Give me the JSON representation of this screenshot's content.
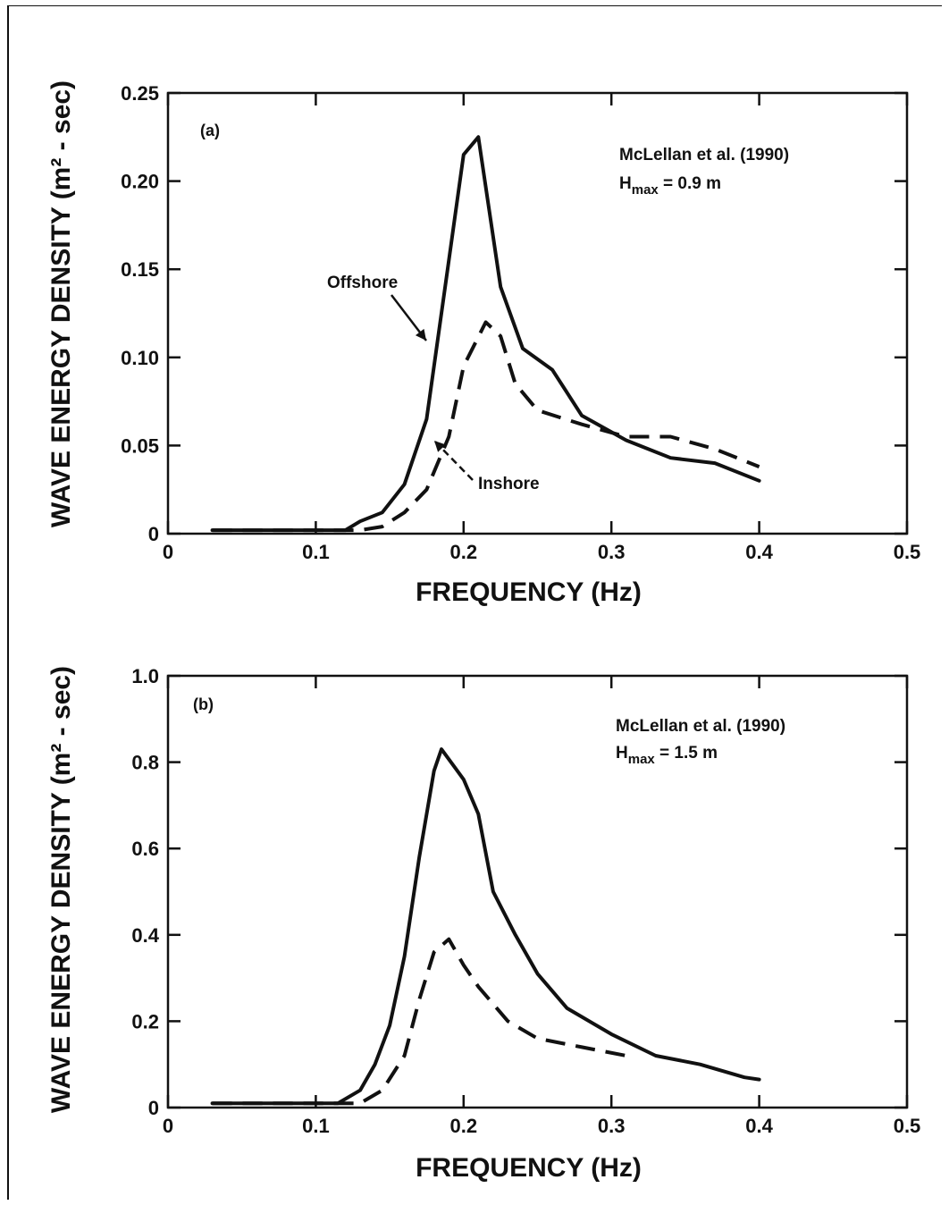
{
  "chart_data": [
    {
      "type": "line",
      "panel_label": "(a)",
      "xlabel": "FREQUENCY (Hz)",
      "ylabel": "WAVE ENERGY DENSITY (m² - sec)",
      "xlim": [
        0,
        0.5
      ],
      "ylim": [
        0,
        0.25
      ],
      "x_ticks": [
        0,
        0.1,
        0.2,
        0.3,
        0.4,
        0.5
      ],
      "x_tick_labels": [
        "0",
        "0.1",
        "0.2",
        "0.3",
        "0.4",
        "0.5"
      ],
      "y_ticks": [
        0,
        0.05,
        0.1,
        0.15,
        0.2,
        0.25
      ],
      "y_tick_labels": [
        "0",
        "0.05",
        "0.10",
        "0.15",
        "0.20",
        "0.25"
      ],
      "annotation_line1": "McLellan et al. (1990)",
      "annotation_hmax": "H",
      "annotation_hmax_sub": "max",
      "annotation_hmax_value": " = 0.9 m",
      "series": [
        {
          "name": "Offshore",
          "style": "solid",
          "x": [
            0.03,
            0.12,
            0.13,
            0.145,
            0.16,
            0.175,
            0.19,
            0.2,
            0.21,
            0.225,
            0.24,
            0.26,
            0.28,
            0.31,
            0.34,
            0.37,
            0.4
          ],
          "y": [
            0.002,
            0.002,
            0.007,
            0.012,
            0.028,
            0.065,
            0.155,
            0.215,
            0.225,
            0.14,
            0.105,
            0.093,
            0.067,
            0.053,
            0.043,
            0.04,
            0.03
          ]
        },
        {
          "name": "Inshore",
          "style": "dashed",
          "x": [
            0.03,
            0.13,
            0.145,
            0.16,
            0.175,
            0.19,
            0.2,
            0.215,
            0.225,
            0.235,
            0.25,
            0.28,
            0.31,
            0.34,
            0.37,
            0.4
          ],
          "y": [
            0.002,
            0.002,
            0.004,
            0.012,
            0.025,
            0.055,
            0.095,
            0.12,
            0.112,
            0.085,
            0.07,
            0.062,
            0.055,
            0.055,
            0.048,
            0.038
          ]
        }
      ],
      "callouts": [
        {
          "series": "Offshore",
          "label": "Offshore",
          "x": 0.175,
          "y": 0.12
        },
        {
          "series": "Inshore",
          "label": "Inshore",
          "x": 0.185,
          "y": 0.054
        }
      ]
    },
    {
      "type": "line",
      "panel_label": "(b)",
      "xlabel": "FREQUENCY (Hz)",
      "ylabel": "WAVE ENERGY DENSITY (m² - sec)",
      "xlim": [
        0,
        0.5
      ],
      "ylim": [
        0,
        1.0
      ],
      "x_ticks": [
        0,
        0.1,
        0.2,
        0.3,
        0.4,
        0.5
      ],
      "x_tick_labels": [
        "0",
        "0.1",
        "0.2",
        "0.3",
        "0.4",
        "0.5"
      ],
      "y_ticks": [
        0,
        0.2,
        0.4,
        0.6,
        0.8,
        1.0
      ],
      "y_tick_labels": [
        "0",
        "0.2",
        "0.4",
        "0.6",
        "0.8",
        "1.0"
      ],
      "annotation_line1": "McLellan et al. (1990)",
      "annotation_hmax": "H",
      "annotation_hmax_sub": "max",
      "annotation_hmax_value": " = 1.5 m",
      "series": [
        {
          "name": "Offshore",
          "style": "solid",
          "x": [
            0.03,
            0.115,
            0.13,
            0.14,
            0.15,
            0.16,
            0.17,
            0.18,
            0.185,
            0.2,
            0.21,
            0.22,
            0.235,
            0.25,
            0.27,
            0.3,
            0.33,
            0.36,
            0.39,
            0.4
          ],
          "y": [
            0.01,
            0.01,
            0.04,
            0.1,
            0.19,
            0.35,
            0.58,
            0.78,
            0.83,
            0.76,
            0.68,
            0.5,
            0.4,
            0.31,
            0.23,
            0.17,
            0.12,
            0.1,
            0.07,
            0.065
          ]
        },
        {
          "name": "Inshore",
          "style": "dashed",
          "x": [
            0.03,
            0.13,
            0.145,
            0.16,
            0.17,
            0.18,
            0.19,
            0.2,
            0.21,
            0.23,
            0.25,
            0.28,
            0.31
          ],
          "y": [
            0.01,
            0.01,
            0.04,
            0.12,
            0.25,
            0.36,
            0.39,
            0.33,
            0.28,
            0.2,
            0.16,
            0.14,
            0.12
          ]
        }
      ]
    }
  ]
}
